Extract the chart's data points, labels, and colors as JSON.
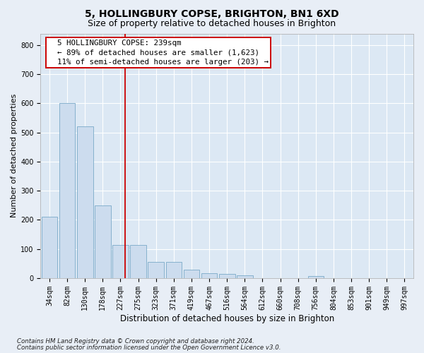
{
  "title1": "5, HOLLINGBURY COPSE, BRIGHTON, BN1 6XD",
  "title2": "Size of property relative to detached houses in Brighton",
  "xlabel": "Distribution of detached houses by size in Brighton",
  "ylabel": "Number of detached properties",
  "footnote1": "Contains HM Land Registry data © Crown copyright and database right 2024.",
  "footnote2": "Contains public sector information licensed under the Open Government Licence v3.0.",
  "annotation_line1": "  5 HOLLINGBURY COPSE: 239sqm",
  "annotation_line2": "  ← 89% of detached houses are smaller (1,623)",
  "annotation_line3": "  11% of semi-detached houses are larger (203) →",
  "bin_labels": [
    "34sqm",
    "82sqm",
    "130sqm",
    "178sqm",
    "227sqm",
    "275sqm",
    "323sqm",
    "371sqm",
    "419sqm",
    "467sqm",
    "516sqm",
    "564sqm",
    "612sqm",
    "660sqm",
    "708sqm",
    "756sqm",
    "804sqm",
    "853sqm",
    "901sqm",
    "949sqm",
    "997sqm"
  ],
  "bar_values": [
    210,
    600,
    520,
    250,
    115,
    115,
    55,
    55,
    30,
    18,
    15,
    10,
    0,
    0,
    0,
    8,
    0,
    0,
    0,
    0,
    0
  ],
  "bar_color": "#ccdcee",
  "bar_edge_color": "#7aaac8",
  "red_line_x": 4.28,
  "ylim": [
    0,
    840
  ],
  "yticks": [
    0,
    100,
    200,
    300,
    400,
    500,
    600,
    700,
    800
  ],
  "fig_bg_color": "#e8eef6",
  "plot_bg_color": "#dce8f4",
  "grid_color": "#ffffff",
  "red_color": "#cc0000",
  "title1_fontsize": 10,
  "title2_fontsize": 9,
  "ylabel_fontsize": 8,
  "xlabel_fontsize": 8.5,
  "tick_fontsize": 7,
  "annot_fontsize": 7.8,
  "footnote_fontsize": 6.2
}
